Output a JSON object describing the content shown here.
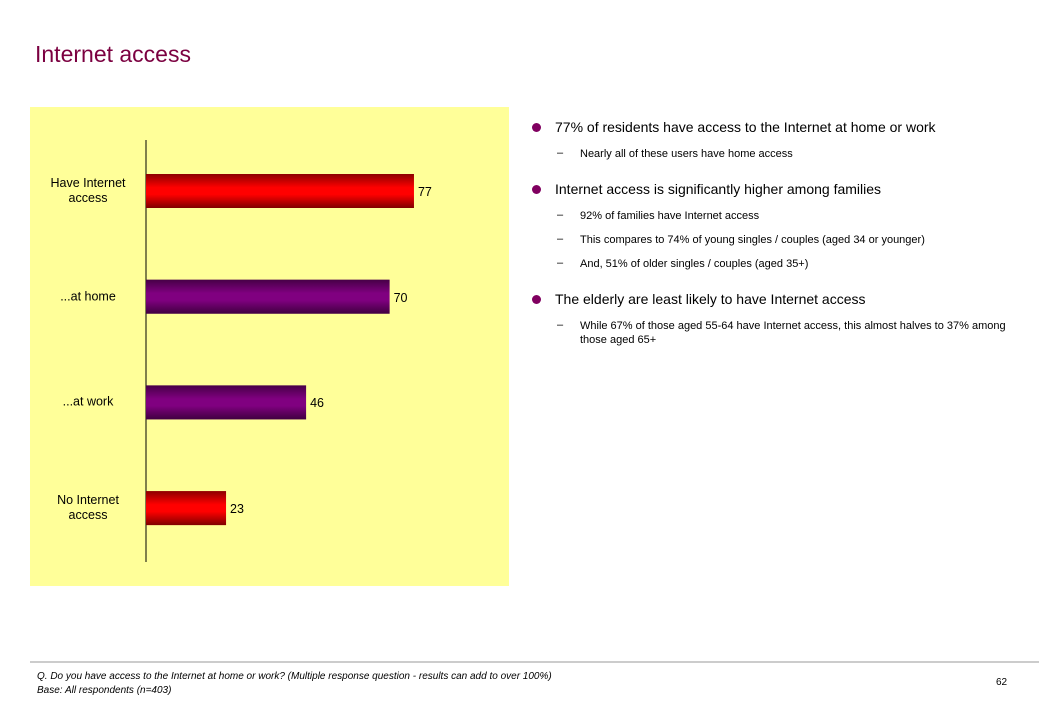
{
  "title": "Internet access",
  "chart_data": {
    "type": "bar",
    "orientation": "horizontal",
    "categories": [
      "Have Internet\naccess",
      "...at home",
      "...at work",
      "No Internet\naccess"
    ],
    "values": [
      77,
      70,
      46,
      23
    ],
    "colors": [
      "#ff0000",
      "#800080",
      "#800080",
      "#ff0000"
    ]
  },
  "bullets": [
    {
      "text": "77% of residents have access to the Internet at home or work",
      "sub": [
        "Nearly all of these users have home access"
      ]
    },
    {
      "text": "Internet access is significantly higher among families",
      "sub": [
        "92% of families have Internet access",
        "This compares to 74% of young singles / couples (aged 34 or younger)",
        "And, 51% of older singles / couples (aged 35+)"
      ]
    },
    {
      "text": "The elderly are least likely to have Internet access",
      "sub": [
        "While 67% of those aged 55-64 have Internet access, this almost halves to 37% among those aged 65+"
      ]
    }
  ],
  "footer": {
    "question": "Q. Do you have access to the Internet at home or work?  (Multiple response question - results can add to over 100%)",
    "base": "Base: All respondents (n=403)",
    "page": "62"
  }
}
